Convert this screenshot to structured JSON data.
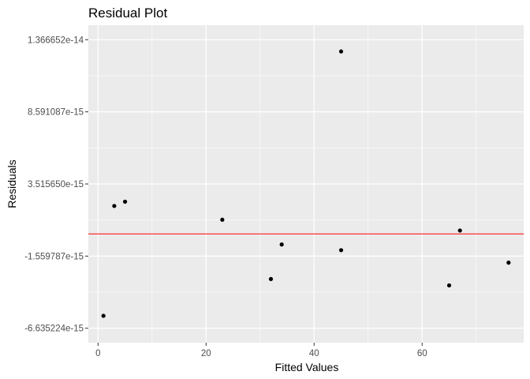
{
  "chart_data": {
    "type": "scatter",
    "title": "Residual Plot",
    "xlabel": "Fitted Values",
    "ylabel": "Residuals",
    "xlim": [
      -1.8,
      78.8
    ],
    "ylim": [
      -6.635224e-15,
      1.366652e-14
    ],
    "x_ticks": [
      0,
      20,
      40,
      60
    ],
    "x_tick_labels": [
      "0",
      "20",
      "40",
      "60"
    ],
    "y_ticks": [
      -6.635224e-15,
      -1.559787e-15,
      3.51565e-15,
      8.591087e-15,
      1.366652e-14
    ],
    "y_tick_labels": [
      "-6.635224e-15",
      "-1.559787e-15",
      "3.515650e-15",
      "8.591087e-15",
      "1.366652e-14"
    ],
    "points": [
      {
        "x": 1,
        "y": -5.76e-15
      },
      {
        "x": 3,
        "y": 1.97e-15
      },
      {
        "x": 5,
        "y": 2.27e-15
      },
      {
        "x": 23,
        "y": 1e-15
      },
      {
        "x": 32,
        "y": -3.17e-15
      },
      {
        "x": 34,
        "y": -7.4e-16
      },
      {
        "x": 45,
        "y": -1.14e-15
      },
      {
        "x": 45,
        "y": 1.284e-14
      },
      {
        "x": 65,
        "y": -3.62e-15
      },
      {
        "x": 67,
        "y": 2.4e-16
      },
      {
        "x": 76,
        "y": -2.02e-15
      }
    ],
    "reference_line": {
      "y": 0,
      "color": "#ff0000"
    },
    "colors": {
      "panel_background": "#ebebeb",
      "grid_major": "#ffffff",
      "point": "#000000"
    },
    "grid": true
  }
}
